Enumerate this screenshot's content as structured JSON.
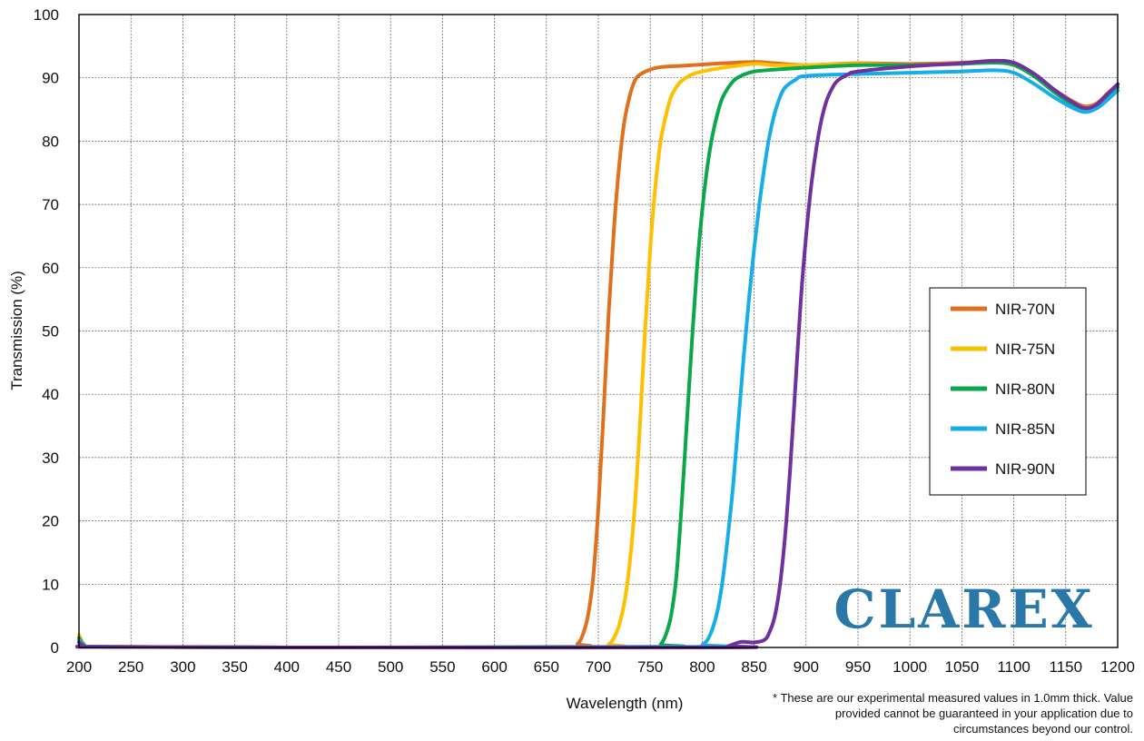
{
  "chart_data": {
    "type": "line",
    "xlabel": "Wavelength (nm)",
    "ylabel": "Transmission (%)",
    "xlim": [
      200,
      1200
    ],
    "ylim": [
      0,
      100
    ],
    "x_ticks": [
      200,
      250,
      300,
      350,
      400,
      450,
      500,
      550,
      600,
      650,
      700,
      750,
      800,
      850,
      900,
      950,
      1000,
      1050,
      1100,
      1150,
      1200
    ],
    "y_ticks": [
      0,
      10,
      20,
      30,
      40,
      50,
      60,
      70,
      80,
      90,
      100
    ],
    "grid": true,
    "legend_position": "right",
    "series": [
      {
        "name": "NIR-70N",
        "color": "#e0701e",
        "points": [
          [
            200,
            1.0
          ],
          [
            205,
            0.3
          ],
          [
            215,
            0.1
          ],
          [
            400,
            0.0
          ],
          [
            670,
            0.1
          ],
          [
            680,
            0.6
          ],
          [
            685,
            2
          ],
          [
            690,
            5
          ],
          [
            695,
            11
          ],
          [
            700,
            22
          ],
          [
            705,
            37
          ],
          [
            710,
            53
          ],
          [
            715,
            66
          ],
          [
            720,
            76
          ],
          [
            725,
            83
          ],
          [
            730,
            87
          ],
          [
            735,
            89.5
          ],
          [
            740,
            90.5
          ],
          [
            750,
            91.3
          ],
          [
            760,
            91.7
          ],
          [
            780,
            91.9
          ],
          [
            800,
            92.1
          ],
          [
            820,
            92.3
          ],
          [
            850,
            92.5
          ],
          [
            870,
            92.3
          ],
          [
            900,
            92.0
          ],
          [
            950,
            92.3
          ],
          [
            1000,
            92.2
          ],
          [
            1050,
            92.4
          ],
          [
            1080,
            92.6
          ],
          [
            1100,
            92.2
          ],
          [
            1120,
            90.5
          ],
          [
            1140,
            88.0
          ],
          [
            1160,
            86.0
          ],
          [
            1170,
            85.5
          ],
          [
            1180,
            86.0
          ],
          [
            1190,
            87.5
          ],
          [
            1200,
            89.0
          ]
        ]
      },
      {
        "name": "NIR-75N",
        "color": "#ffc000",
        "points": [
          [
            200,
            2.0
          ],
          [
            205,
            0.5
          ],
          [
            215,
            0.1
          ],
          [
            400,
            0.0
          ],
          [
            700,
            0.1
          ],
          [
            710,
            0.5
          ],
          [
            715,
            1.5
          ],
          [
            720,
            3.5
          ],
          [
            725,
            7
          ],
          [
            730,
            13
          ],
          [
            735,
            22
          ],
          [
            740,
            35
          ],
          [
            745,
            50
          ],
          [
            750,
            63
          ],
          [
            755,
            73
          ],
          [
            760,
            80
          ],
          [
            765,
            84
          ],
          [
            770,
            87
          ],
          [
            775,
            88.5
          ],
          [
            780,
            89.5
          ],
          [
            790,
            90.5
          ],
          [
            800,
            91.0
          ],
          [
            820,
            91.6
          ],
          [
            850,
            92.2
          ],
          [
            870,
            92.0
          ],
          [
            900,
            92.0
          ],
          [
            950,
            92.2
          ],
          [
            1000,
            92.0
          ],
          [
            1050,
            92.3
          ],
          [
            1080,
            92.5
          ],
          [
            1100,
            92.0
          ],
          [
            1120,
            90.3
          ],
          [
            1140,
            87.8
          ],
          [
            1160,
            85.7
          ],
          [
            1170,
            85.3
          ],
          [
            1180,
            85.8
          ],
          [
            1190,
            87.3
          ],
          [
            1200,
            88.8
          ]
        ]
      },
      {
        "name": "NIR-80N",
        "color": "#0aa84a",
        "points": [
          [
            200,
            1.5
          ],
          [
            205,
            0.4
          ],
          [
            215,
            0.1
          ],
          [
            400,
            0.0
          ],
          [
            755,
            0.1
          ],
          [
            760,
            0.5
          ],
          [
            765,
            2
          ],
          [
            770,
            5
          ],
          [
            775,
            11
          ],
          [
            780,
            22
          ],
          [
            785,
            35
          ],
          [
            790,
            48
          ],
          [
            795,
            60
          ],
          [
            800,
            69
          ],
          [
            805,
            76
          ],
          [
            810,
            81
          ],
          [
            815,
            84.5
          ],
          [
            820,
            87
          ],
          [
            830,
            89.5
          ],
          [
            840,
            90.5
          ],
          [
            850,
            91.0
          ],
          [
            870,
            91.3
          ],
          [
            900,
            91.6
          ],
          [
            950,
            92.0
          ],
          [
            1000,
            92.0
          ],
          [
            1050,
            92.2
          ],
          [
            1080,
            92.4
          ],
          [
            1100,
            92.0
          ],
          [
            1120,
            90.2
          ],
          [
            1140,
            87.6
          ],
          [
            1160,
            85.5
          ],
          [
            1170,
            85.0
          ],
          [
            1180,
            85.5
          ],
          [
            1190,
            87.0
          ],
          [
            1200,
            88.5
          ]
        ]
      },
      {
        "name": "NIR-85N",
        "color": "#15aee8",
        "points": [
          [
            200,
            1.2
          ],
          [
            205,
            0.3
          ],
          [
            215,
            0.1
          ],
          [
            400,
            0.0
          ],
          [
            795,
            0.1
          ],
          [
            800,
            0.4
          ],
          [
            805,
            1.2
          ],
          [
            810,
            3
          ],
          [
            815,
            6
          ],
          [
            820,
            11
          ],
          [
            825,
            18
          ],
          [
            830,
            26
          ],
          [
            835,
            36
          ],
          [
            840,
            46
          ],
          [
            845,
            55
          ],
          [
            850,
            63
          ],
          [
            855,
            70
          ],
          [
            860,
            76
          ],
          [
            865,
            81
          ],
          [
            870,
            84.5
          ],
          [
            875,
            87
          ],
          [
            880,
            88.5
          ],
          [
            890,
            89.7
          ],
          [
            900,
            90.3
          ],
          [
            950,
            90.6
          ],
          [
            1000,
            90.8
          ],
          [
            1050,
            91.0
          ],
          [
            1080,
            91.2
          ],
          [
            1100,
            90.8
          ],
          [
            1120,
            89.0
          ],
          [
            1140,
            86.8
          ],
          [
            1160,
            85.0
          ],
          [
            1170,
            84.6
          ],
          [
            1180,
            85.2
          ],
          [
            1190,
            86.5
          ],
          [
            1200,
            88.0
          ]
        ]
      },
      {
        "name": "NIR-90N",
        "color": "#7030a0",
        "points": [
          [
            200,
            0.8
          ],
          [
            205,
            0.2
          ],
          [
            215,
            0.1
          ],
          [
            400,
            0.0
          ],
          [
            820,
            0.0
          ],
          [
            825,
            0.2
          ],
          [
            830,
            0.5
          ],
          [
            835,
            0.8
          ],
          [
            840,
            0.9
          ],
          [
            850,
            0.8
          ],
          [
            860,
            1.2
          ],
          [
            865,
            2.5
          ],
          [
            870,
            5
          ],
          [
            875,
            10
          ],
          [
            880,
            18
          ],
          [
            885,
            29
          ],
          [
            890,
            42
          ],
          [
            895,
            55
          ],
          [
            900,
            65
          ],
          [
            905,
            73
          ],
          [
            910,
            79
          ],
          [
            915,
            83.5
          ],
          [
            920,
            86.5
          ],
          [
            925,
            88.3
          ],
          [
            930,
            89.5
          ],
          [
            940,
            90.5
          ],
          [
            950,
            91.0
          ],
          [
            1000,
            91.8
          ],
          [
            1050,
            92.3
          ],
          [
            1080,
            92.7
          ],
          [
            1100,
            92.4
          ],
          [
            1120,
            90.6
          ],
          [
            1140,
            88.0
          ],
          [
            1160,
            85.8
          ],
          [
            1170,
            85.2
          ],
          [
            1180,
            85.8
          ],
          [
            1190,
            87.4
          ],
          [
            1200,
            89.0
          ]
        ]
      }
    ]
  },
  "footnote": {
    "line1": "* These are our experimental measured values in 1.0mm thick.  Value",
    "line2": "provided cannot be guaranteed in your application due to",
    "line3": "circumstances beyond our control."
  },
  "logo": {
    "text": "CLAREX",
    "color": "#2a78a8"
  }
}
